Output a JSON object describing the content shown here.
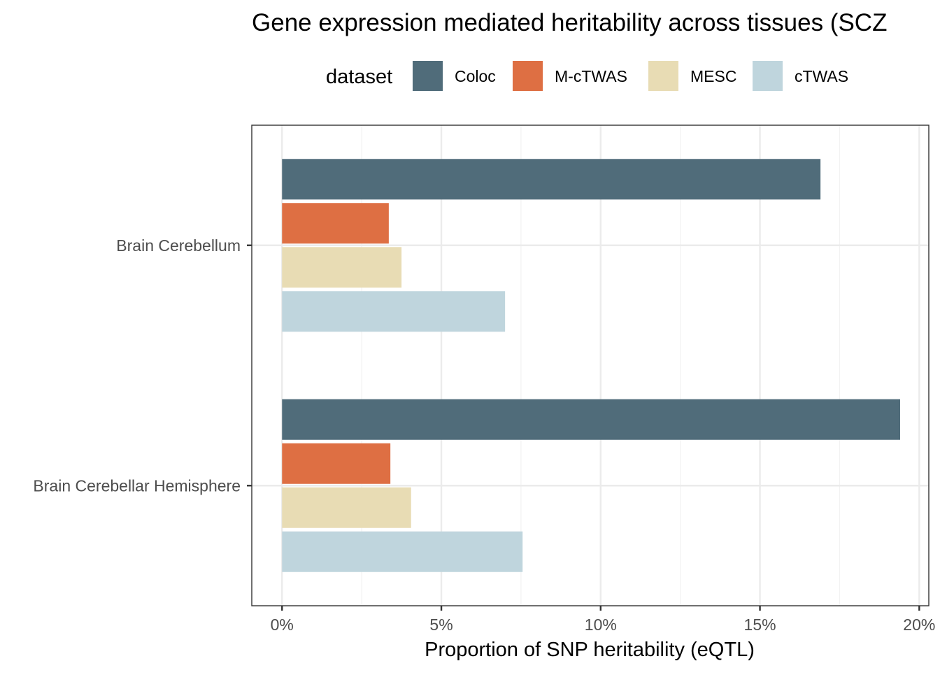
{
  "chart_data": {
    "type": "bar",
    "orientation": "horizontal",
    "title": "Gene expression mediated heritability across tissues (SCZ",
    "xlabel": "Proportion of SNP heritability (eQTL)",
    "ylabel": "",
    "legend": {
      "title": "dataset",
      "position": "top"
    },
    "xlim": [
      -0.95,
      20.3
    ],
    "x_ticks": [
      0,
      5,
      10,
      15,
      20
    ],
    "x_tick_labels": [
      "0%",
      "5%",
      "10%",
      "15%",
      "20%"
    ],
    "grid": true,
    "categories": [
      "Brain Cerebellum",
      "Brain Cerebellar Hemisphere"
    ],
    "series": [
      {
        "name": "Coloc",
        "color": "#506c7a",
        "values": [
          16.9,
          19.4
        ]
      },
      {
        "name": "M-cTWAS",
        "color": "#de6f43",
        "values": [
          3.35,
          3.4
        ]
      },
      {
        "name": "MESC",
        "color": "#e8dcb4",
        "values": [
          3.75,
          4.05
        ]
      },
      {
        "name": "cTWAS",
        "color": "#bfd5dd",
        "values": [
          7.0,
          7.55
        ]
      }
    ]
  }
}
